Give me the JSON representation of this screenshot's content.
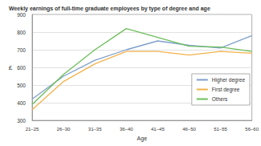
{
  "chart_data": {
    "type": "line",
    "title": "Weekly earnings of full-time graduate employees by type of degree and age",
    "x_label": "Age",
    "y_label": "£",
    "categories": [
      "21–25",
      "26–30",
      "31–35",
      "36–40",
      "41–45",
      "46–50",
      "51–55",
      "56–60"
    ],
    "series": [
      {
        "name": "Higher degree",
        "color": "#7f9fcb",
        "values": [
          420,
          550,
          640,
          700,
          750,
          725,
          710,
          780
        ]
      },
      {
        "name": "First degree",
        "color": "#f2b24c",
        "values": [
          360,
          520,
          620,
          690,
          690,
          670,
          690,
          680
        ]
      },
      {
        "name": "Others",
        "color": "#6cbf5a",
        "values": [
          390,
          560,
          700,
          820,
          770,
          720,
          715,
          690
        ]
      }
    ],
    "ylim": [
      300,
      900
    ],
    "yticks": [
      300,
      400,
      500,
      600,
      700,
      800,
      900
    ],
    "grid": true,
    "legend": "right"
  }
}
